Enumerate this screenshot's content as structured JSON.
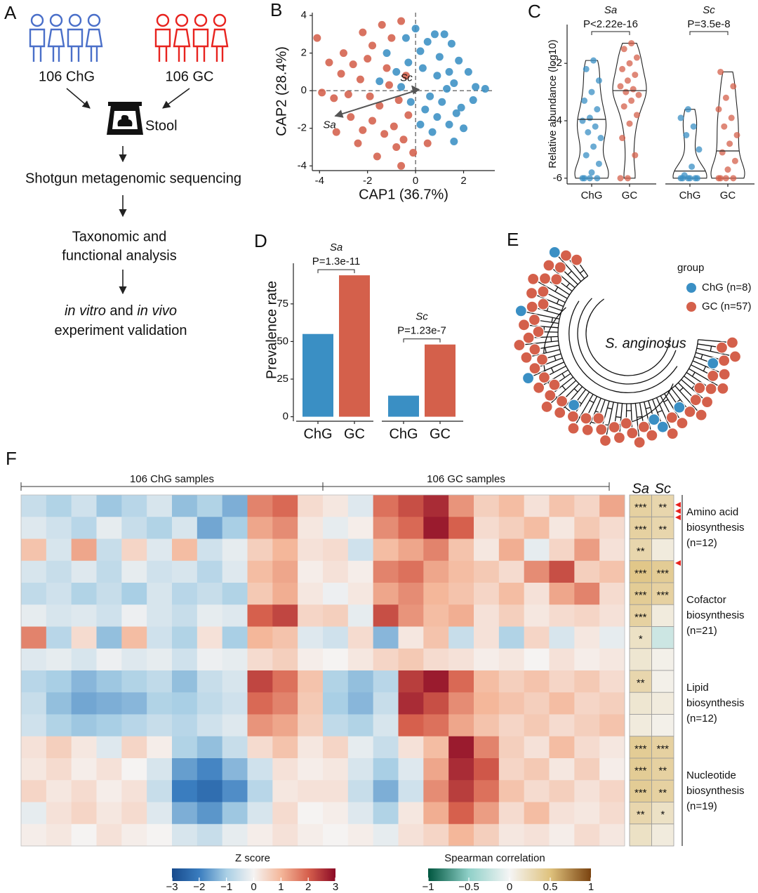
{
  "panel_labels": [
    "A",
    "B",
    "C",
    "D",
    "E",
    "F"
  ],
  "workflow": {
    "groups": [
      {
        "label": "106 ChG",
        "color": "#4a6fc9"
      },
      {
        "label": "106 GC",
        "color": "#e8231f"
      }
    ],
    "sample": "Stool",
    "steps": [
      [
        "Shotgun metagenomic sequencing"
      ],
      [
        "Taxonomic and",
        "functional analysis"
      ]
    ],
    "validation": [
      [
        {
          "text": "in vitro",
          "italic": true
        },
        {
          "text": " and ",
          "italic": false
        },
        {
          "text": "in vivo",
          "italic": true
        }
      ],
      [
        {
          "text": "experiment validation",
          "italic": false
        }
      ]
    ]
  },
  "tree": {
    "legend_title": "group",
    "legend": [
      {
        "label": "ChG (n=8)",
        "color": "#3a8fc4"
      },
      {
        "label": "GC (n=57)",
        "color": "#d4604b"
      }
    ],
    "label": "S. anginosus"
  },
  "chart_data": [
    {
      "type": "scatter",
      "xlabel": "CAP1 (36.7%)",
      "ylabel": "CAP2 (28.4%)",
      "xlim": [
        -4.3,
        3.3
      ],
      "ylim": [
        -4.25,
        4.15
      ],
      "xticks": [
        -4,
        -2,
        0,
        2
      ],
      "yticks": [
        -4,
        -2,
        0,
        2,
        4
      ],
      "series": [
        {
          "color": "#3a8fc4",
          "x": [
            0.2,
            0.5,
            0.8,
            1.2,
            1.5,
            1.0,
            1.8,
            2.2,
            2.5,
            1.6,
            0.9,
            0.3,
            -0.3,
            -0.8,
            -1.2,
            -1.5,
            0.6,
            1.1,
            1.9,
            2.4,
            0.4,
            0.9,
            1.4,
            2.0,
            1.6,
            0.7,
            0.2,
            -0.2,
            -0.6,
            1.3,
            2.9,
            1.7,
            -0.4,
            0.0,
            1.4
          ],
          "y": [
            2.1,
            2.6,
            3.0,
            3.0,
            2.5,
            1.8,
            1.6,
            1.0,
            0.2,
            0.4,
            0.8,
            1.2,
            1.5,
            1.0,
            2.0,
            0.5,
            -0.3,
            -0.6,
            -0.9,
            -0.5,
            -1.0,
            -1.4,
            -1.8,
            -2.0,
            -2.7,
            -2.2,
            -1.8,
            -0.6,
            0.2,
            0.1,
            0.1,
            -1.2,
            2.8,
            3.3,
            1.0
          ]
        },
        {
          "color": "#d4604b",
          "x": [
            -4.1,
            -3.6,
            -3.0,
            -2.6,
            -2.2,
            -1.8,
            -1.4,
            -1.0,
            -0.6,
            -3.4,
            -2.8,
            -2.3,
            -1.9,
            -1.5,
            -1.1,
            -0.7,
            -0.3,
            -3.3,
            -2.7,
            -2.2,
            -1.8,
            -1.3,
            -0.9,
            -0.5,
            -0.1,
            -0.8,
            -1.6,
            -2.4,
            -3.9,
            -0.4,
            -1.2,
            0.5,
            -0.6,
            -3.1,
            -2.0
          ],
          "y": [
            2.8,
            1.5,
            2.0,
            1.4,
            3.1,
            2.4,
            3.5,
            2.8,
            3.7,
            -0.4,
            -0.2,
            0.6,
            -0.3,
            -0.8,
            0.3,
            -0.5,
            -1.3,
            -2.2,
            -1.4,
            -2.1,
            -1.6,
            -2.3,
            -1.9,
            -2.6,
            -3.3,
            -3.0,
            -3.5,
            -2.8,
            -0.1,
            0.8,
            1.2,
            -2.8,
            -4.0,
            0.9,
            1.7
          ]
        }
      ],
      "arrows": [
        {
          "label": "Sa",
          "x": -3.35,
          "y": -1.35
        },
        {
          "label": "Sc",
          "x": -0.15,
          "y": 0.25
        }
      ]
    },
    {
      "type": "violin",
      "ylabel": "Relative abundance (log10)",
      "ylim": [
        -6.2,
        -0.65
      ],
      "yticks": [
        -2,
        -4,
        -6
      ],
      "categories": [
        "ChG",
        "GC"
      ],
      "colors": [
        "#3a8fc4",
        "#d4604b"
      ],
      "facets": [
        {
          "title": "Sa",
          "p_label": "P<2.22e-16",
          "groups": [
            [
              -6,
              -6,
              -6,
              -6,
              -5.8,
              -5.5,
              -5.2,
              -4.9,
              -4.6,
              -4.4,
              -4.2,
              -4.0,
              -3.9,
              -3.6,
              -3.3,
              -3.0,
              -2.6,
              -2.2,
              -1.9
            ],
            [
              -6,
              -6,
              -5.2,
              -4.6,
              -4.1,
              -3.8,
              -3.5,
              -3.3,
              -3.1,
              -3.0,
              -2.9,
              -2.8,
              -2.6,
              -2.4,
              -2.2,
              -2.0,
              -1.8,
              -1.5,
              -1.3
            ]
          ],
          "medians": [
            -3.95,
            -2.95
          ]
        },
        {
          "title": "Sc",
          "p_label": "P=3.5e-8",
          "groups": [
            [
              -6,
              -6,
              -6,
              -6,
              -6,
              -6,
              -5.9,
              -5.6,
              -5.0,
              -4.5,
              -4.2,
              -3.9,
              -3.6
            ],
            [
              -6,
              -6,
              -6,
              -6,
              -5.7,
              -5.4,
              -5.1,
              -4.8,
              -4.5,
              -4.2,
              -3.9,
              -3.6,
              -3.2,
              -2.8,
              -2.3
            ]
          ],
          "medians": [
            -5.75,
            -5.05
          ]
        }
      ]
    },
    {
      "type": "bar",
      "ylabel": "Prevalence rate",
      "ylim": [
        -3,
        102
      ],
      "yticks": [
        0,
        25,
        50,
        75
      ],
      "categories": [
        "ChG",
        "GC"
      ],
      "colors": [
        "#3a8fc4",
        "#d4604b"
      ],
      "facets": [
        {
          "title": "Sa",
          "p_label": "P=1.3e-11",
          "values": [
            55,
            94
          ]
        },
        {
          "title": "Sc",
          "p_label": "P=1.23e-7",
          "values": [
            14,
            48
          ]
        }
      ]
    },
    {
      "type": "heatmap",
      "column_groups": [
        "106 ChG samples",
        "106 GC samples"
      ],
      "zscale": {
        "title": "Z score",
        "lim": [
          -3,
          3
        ],
        "ticks": [
          {
            "value": -3,
            "label": "−3"
          },
          {
            "value": -2,
            "label": "−2"
          },
          {
            "value": -1,
            "label": "−1"
          },
          0,
          1,
          2,
          3
        ],
        "colors": [
          "#174a8c",
          "#3a7dbf",
          "#a9cfe5",
          "#f5f3f2",
          "#f4b79a",
          "#d6604d",
          "#8b0a26"
        ]
      },
      "correlation_columns": [
        "Sa",
        "Sc"
      ],
      "correlation_scale": {
        "title": "Spearman correlation",
        "lim": [
          -1,
          1
        ],
        "ticks": [
          {
            "value": -1,
            "label": "−1"
          },
          {
            "value": -0.5,
            "label": "−0.5"
          },
          0,
          0.5,
          1
        ],
        "colors": [
          "#00563f",
          "#8fd0c8",
          "#f5f5f5",
          "#dfc27d",
          "#7a4310"
        ]
      },
      "row_groups": [
        {
          "lines": [
            "Amino acid",
            "biosynthesis",
            "(n=12)"
          ],
          "matrix": [
            [
              -0.6,
              -0.9,
              -0.5,
              -1.1,
              -0.8,
              -0.4,
              -1.2,
              -0.9,
              -1.4,
              1.6,
              1.9,
              0.4,
              0.2,
              -0.3,
              1.8,
              2.2,
              2.6,
              1.4,
              0.6,
              0.9,
              0.3,
              0.8,
              0.5,
              1.2
            ],
            [
              -0.3,
              -0.5,
              -0.8,
              -0.2,
              -0.6,
              -0.9,
              -0.4,
              -1.5,
              -1.0,
              1.2,
              1.5,
              0.2,
              -0.2,
              0.1,
              1.5,
              1.9,
              2.8,
              2.0,
              0.4,
              0.6,
              0.9,
              0.2,
              0.7,
              0.4
            ],
            [
              0.8,
              -0.4,
              1.2,
              -0.6,
              0.5,
              -0.3,
              0.9,
              -0.5,
              -0.2,
              0.6,
              1.0,
              0.3,
              0.4,
              -0.5,
              0.9,
              1.2,
              1.6,
              0.8,
              0.2,
              1.1,
              -0.2,
              0.5,
              1.3,
              0.3
            ]
          ],
          "correlation": [
            [
              0.35,
              0.3
            ],
            [
              0.35,
              0.3
            ],
            [
              0.3,
              0.1
            ]
          ],
          "stars": [
            [
              "***",
              "**"
            ],
            [
              "***",
              "**"
            ],
            [
              "**",
              null
            ]
          ]
        },
        {
          "lines": [
            "Cofactor",
            "biosynthesis",
            "(n=21)"
          ],
          "matrix": [
            [
              -0.4,
              -0.6,
              -0.3,
              -0.7,
              -0.2,
              -0.5,
              -0.4,
              -0.8,
              -0.3,
              0.9,
              1.2,
              0.1,
              0.3,
              0.1,
              1.6,
              1.8,
              1.2,
              0.9,
              0.7,
              0.4,
              1.5,
              2.2,
              0.6,
              0.8
            ],
            [
              -0.7,
              -0.5,
              -0.9,
              -0.6,
              -1.0,
              -0.4,
              -0.8,
              -0.6,
              -0.9,
              0.7,
              1.1,
              0.2,
              -0.1,
              0.2,
              1.2,
              1.5,
              1.0,
              0.8,
              0.5,
              0.9,
              0.3,
              1.2,
              1.6,
              0.4
            ],
            [
              -0.2,
              -0.4,
              -0.3,
              -0.5,
              -0.1,
              -0.4,
              -0.6,
              -0.2,
              -0.3,
              2.0,
              2.3,
              0.5,
              0.6,
              -0.2,
              2.2,
              1.4,
              0.9,
              1.1,
              0.3,
              0.6,
              0.2,
              0.4,
              0.5,
              0.3
            ],
            [
              1.6,
              -0.8,
              0.4,
              -1.2,
              0.9,
              -0.5,
              -0.9,
              0.3,
              -1.0,
              1.0,
              0.8,
              -0.3,
              -0.5,
              0.4,
              -1.3,
              0.2,
              0.8,
              -0.6,
              0.3,
              -0.9,
              0.5,
              -0.4,
              0.2,
              -0.2
            ],
            [
              -0.3,
              -0.2,
              -0.4,
              -0.1,
              -0.3,
              -0.2,
              -0.5,
              -0.1,
              -0.2,
              0.4,
              0.6,
              0.1,
              0.0,
              0.2,
              0.5,
              0.7,
              0.4,
              0.3,
              0.1,
              0.2,
              0.0,
              0.3,
              0.1,
              0.2
            ]
          ],
          "correlation": [
            [
              0.45,
              0.4
            ],
            [
              0.4,
              0.35
            ],
            [
              0.35,
              0.1
            ],
            [
              0.2,
              -0.2
            ],
            [
              0.15,
              0.05
            ]
          ],
          "stars": [
            [
              "***",
              "***"
            ],
            [
              "***",
              "***"
            ],
            [
              "***",
              null
            ],
            [
              "*",
              null
            ],
            [
              null,
              null
            ]
          ]
        },
        {
          "lines": [
            "Lipid",
            "biosynthesis",
            "(n=12)"
          ],
          "matrix": [
            [
              -0.8,
              -1.0,
              -1.3,
              -1.1,
              -0.9,
              -0.7,
              -1.2,
              -0.6,
              -0.4,
              2.3,
              1.8,
              0.8,
              -0.9,
              -1.2,
              -0.8,
              2.4,
              2.8,
              1.9,
              0.9,
              0.6,
              0.8,
              0.5,
              0.7,
              0.4
            ],
            [
              -0.6,
              -1.2,
              -1.5,
              -1.4,
              -1.3,
              -0.9,
              -1.0,
              -0.7,
              -0.5,
              1.9,
              1.6,
              0.7,
              -1.0,
              -1.3,
              -0.6,
              2.6,
              2.2,
              1.5,
              1.0,
              0.8,
              0.6,
              0.9,
              0.5,
              0.6
            ],
            [
              -0.5,
              -0.9,
              -1.1,
              -1.0,
              -0.8,
              -0.6,
              -0.8,
              -0.5,
              -0.3,
              1.4,
              1.2,
              0.6,
              -0.7,
              -0.9,
              -0.4,
              2.0,
              1.8,
              1.2,
              0.8,
              0.5,
              0.7,
              0.4,
              0.6,
              0.8
            ]
          ],
          "correlation": [
            [
              0.3,
              0.05
            ],
            [
              0.15,
              0.1
            ],
            [
              0.1,
              0.05
            ]
          ],
          "stars": [
            [
              "**",
              null
            ],
            [
              null,
              null
            ],
            [
              null,
              null
            ]
          ]
        },
        {
          "lines": [
            "Nucleotide",
            "biosynthesis",
            "(n=19)"
          ],
          "matrix": [
            [
              0.3,
              0.6,
              0.2,
              -0.3,
              0.5,
              0.1,
              -0.9,
              -1.2,
              -0.6,
              0.4,
              0.8,
              0.2,
              0.5,
              -0.2,
              -0.6,
              0.3,
              0.9,
              2.8,
              1.6,
              0.6,
              0.3,
              0.9,
              0.4,
              0.2
            ],
            [
              0.2,
              0.4,
              0.1,
              0.3,
              0.0,
              -0.4,
              -1.6,
              -1.9,
              -1.3,
              -0.5,
              0.3,
              0.1,
              0.2,
              -0.4,
              -1.0,
              -0.3,
              1.2,
              2.6,
              2.1,
              0.5,
              0.7,
              0.2,
              0.6,
              0.1
            ],
            [
              0.5,
              0.2,
              0.4,
              0.1,
              0.3,
              -0.6,
              -2.0,
              -2.3,
              -1.8,
              -0.8,
              0.2,
              0.3,
              0.3,
              -0.6,
              -1.4,
              -0.5,
              1.5,
              2.4,
              1.8,
              0.8,
              0.4,
              0.6,
              0.3,
              0.5
            ],
            [
              -0.2,
              0.3,
              0.5,
              0.2,
              0.4,
              -0.3,
              -1.4,
              -1.7,
              -1.1,
              -0.4,
              0.4,
              0.0,
              0.1,
              -0.3,
              -0.9,
              0.2,
              1.1,
              2.0,
              1.3,
              0.4,
              0.9,
              0.3,
              0.2,
              0.4
            ],
            [
              0.1,
              0.2,
              0.0,
              0.3,
              0.1,
              0.0,
              -0.4,
              -0.6,
              -0.2,
              0.1,
              0.3,
              0.1,
              0.0,
              0.1,
              -0.2,
              0.3,
              0.5,
              1.0,
              0.6,
              0.2,
              0.3,
              0.1,
              0.4,
              0.2
            ]
          ],
          "correlation": [
            [
              0.4,
              0.35
            ],
            [
              0.4,
              0.35
            ],
            [
              0.4,
              0.35
            ],
            [
              0.3,
              0.2
            ],
            [
              0.2,
              0.1
            ]
          ],
          "stars": [
            [
              "***",
              "***"
            ],
            [
              "***",
              "**"
            ],
            [
              "***",
              "**"
            ],
            [
              "**",
              "*"
            ],
            [
              null,
              null
            ]
          ]
        }
      ]
    }
  ]
}
